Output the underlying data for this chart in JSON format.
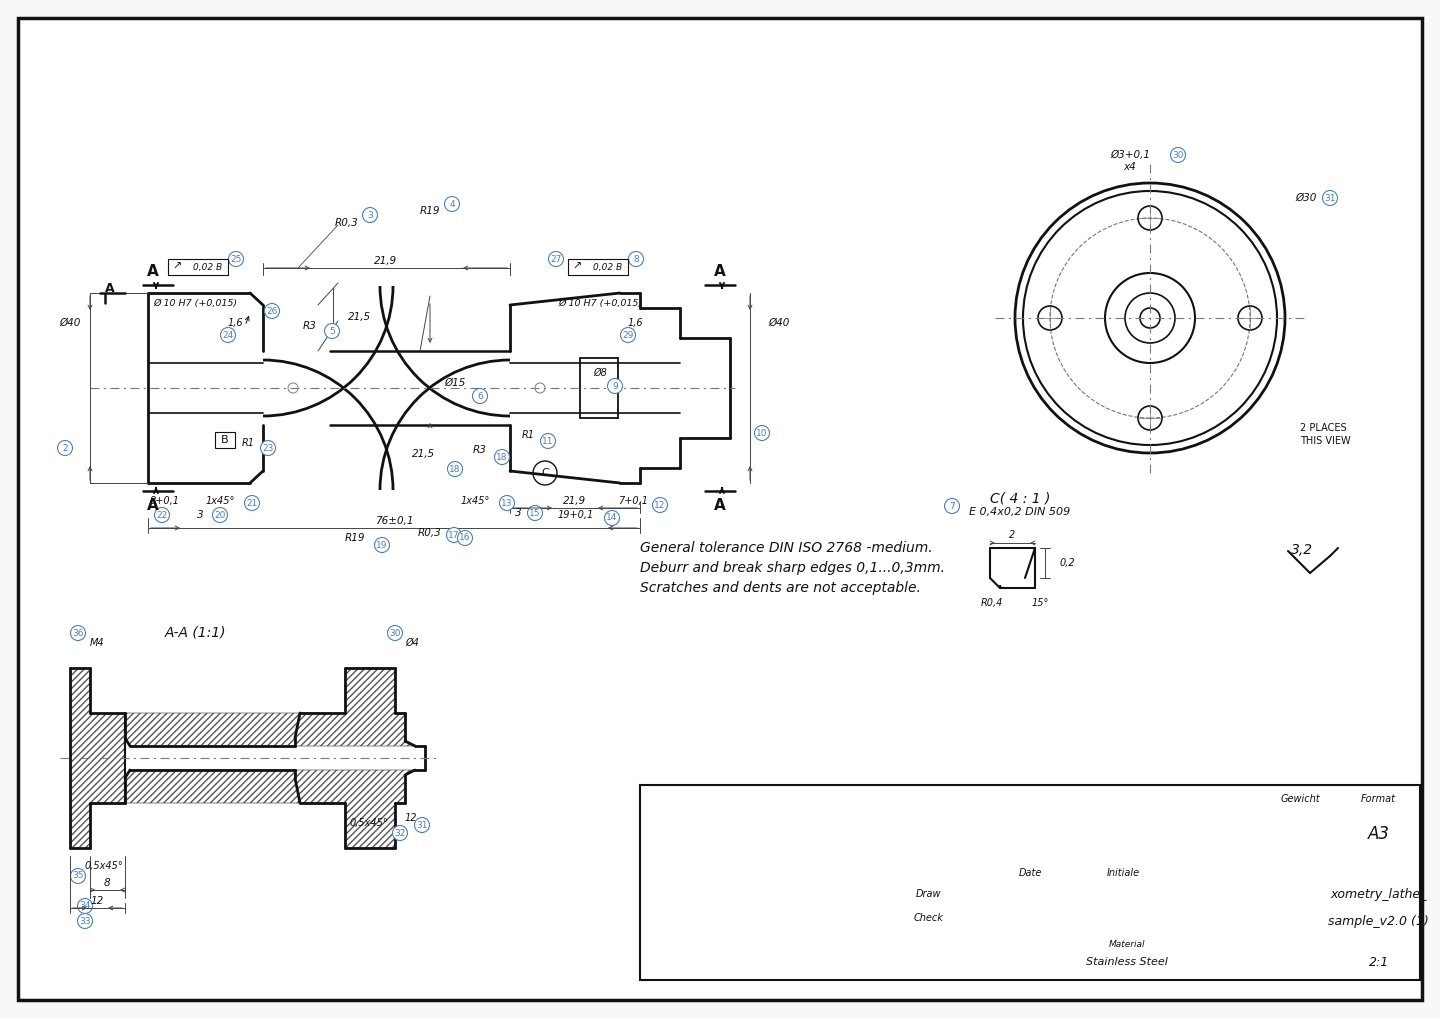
{
  "bg_color": "#ffffff",
  "line_color": "#1a1a1a",
  "dim_color": "#1a1a1a",
  "circle_label_color": "#4a7fc1",
  "title_line1": "xometry_lathe_",
  "title_line2": "sample_v2.0 (1)",
  "material": "Stainless Steel",
  "scale": "2:1",
  "format": "A3",
  "general_tolerance": "General tolerance DIN ISO 2768 -medium.",
  "deburr": "Deburr and break sharp edges 0,1...0,3mm.",
  "scratches": "Scratches and dents are not acceptable.",
  "surface_finish": "3,2",
  "section_label": "A-A (1:1)",
  "detail_label": "C( 4 : 1 )",
  "detail_note": "E 0,4x0,2 DIN 509",
  "gewicht": "Gewicht",
  "format_label": "Format"
}
